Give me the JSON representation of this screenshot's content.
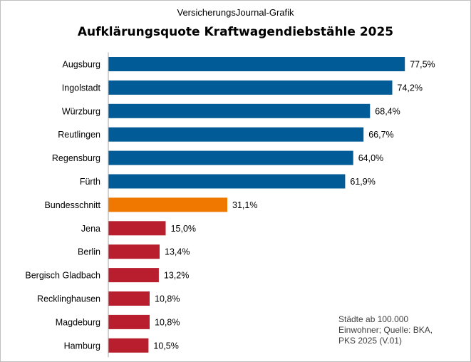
{
  "header": {
    "subtitle": "VersicherungsJournal-Grafik",
    "title": "Aufklärungsquote Kraftwagendiebstähle 2025"
  },
  "note": {
    "line1": "Städte ab 100.000",
    "line2": "Einwohner;  Quelle: BKA,",
    "line3": "PKS 2025  (V.01)"
  },
  "colors": {
    "top": "#005b96",
    "average": "#f07800",
    "bottom": "#b81e2d",
    "axis": "#a6a6a6"
  },
  "chart_data": {
    "type": "bar",
    "orientation": "horizontal",
    "title": "Aufklärungsquote Kraftwagendiebstähle 2025",
    "xlim": [
      0,
      100
    ],
    "grid": false,
    "legend": "none",
    "categories": [
      "Augsburg",
      "Ingolstadt",
      "Würzburg",
      "Reutlingen",
      "Regensburg",
      "Fürth",
      "Bundesschnitt",
      "Jena",
      "Berlin",
      "Bergisch Gladbach",
      "Recklinghausen",
      "Magdeburg",
      "Hamburg"
    ],
    "values": [
      77.5,
      74.2,
      68.4,
      66.7,
      64.0,
      61.9,
      31.1,
      15.0,
      13.4,
      13.2,
      10.8,
      10.8,
      10.5
    ],
    "value_labels": [
      "77,5%",
      "74,2%",
      "68,4%",
      "66,7%",
      "64,0%",
      "61,9%",
      "31,1%",
      "15,0%",
      "13,4%",
      "13,2%",
      "10,8%",
      "10,8%",
      "10,5%"
    ],
    "bar_colors": [
      "#005b96",
      "#005b96",
      "#005b96",
      "#005b96",
      "#005b96",
      "#005b96",
      "#f07800",
      "#b81e2d",
      "#b81e2d",
      "#b81e2d",
      "#b81e2d",
      "#b81e2d",
      "#b81e2d"
    ]
  }
}
